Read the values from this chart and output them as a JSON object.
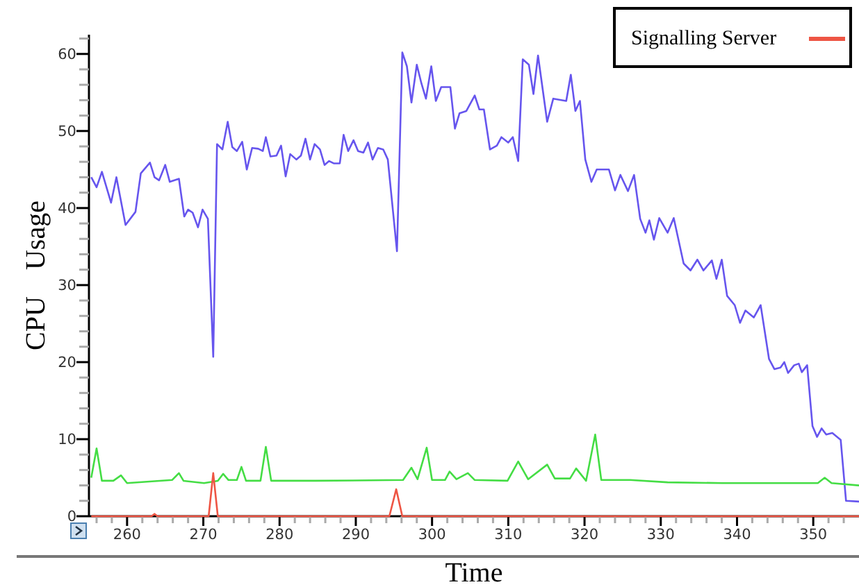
{
  "chart_data": {
    "type": "line",
    "xlabel": "Time",
    "ylabel": "CPU Usage",
    "xlim": [
      255,
      356
    ],
    "ylim": [
      0,
      62.5
    ],
    "xticks": [
      {
        "value": 256,
        "label": null
      },
      {
        "value": 258,
        "label": null
      },
      260,
      {
        "value": 262,
        "label": null
      },
      {
        "value": 264,
        "label": null
      },
      {
        "value": 266,
        "label": null
      },
      {
        "value": 268,
        "label": null
      },
      270,
      {
        "value": 272,
        "label": null
      },
      {
        "value": 274,
        "label": null
      },
      {
        "value": 276,
        "label": null
      },
      {
        "value": 278,
        "label": null
      },
      280,
      {
        "value": 282,
        "label": null
      },
      {
        "value": 284,
        "label": null
      },
      {
        "value": 286,
        "label": null
      },
      {
        "value": 288,
        "label": null
      },
      290,
      {
        "value": 292,
        "label": null
      },
      {
        "value": 294,
        "label": null
      },
      {
        "value": 296,
        "label": null
      },
      {
        "value": 298,
        "label": null
      },
      300,
      {
        "value": 302,
        "label": null
      },
      {
        "value": 304,
        "label": null
      },
      {
        "value": 306,
        "label": null
      },
      {
        "value": 308,
        "label": null
      },
      310,
      {
        "value": 312,
        "label": null
      },
      {
        "value": 314,
        "label": null
      },
      {
        "value": 316,
        "label": null
      },
      {
        "value": 318,
        "label": null
      },
      320,
      {
        "value": 322,
        "label": null
      },
      {
        "value": 324,
        "label": null
      },
      {
        "value": 326,
        "label": null
      },
      {
        "value": 328,
        "label": null
      },
      330,
      {
        "value": 332,
        "label": null
      },
      {
        "value": 334,
        "label": null
      },
      {
        "value": 336,
        "label": null
      },
      {
        "value": 338,
        "label": null
      },
      340,
      {
        "value": 342,
        "label": null
      },
      {
        "value": 344,
        "label": null
      },
      {
        "value": 346,
        "label": null
      },
      {
        "value": 348,
        "label": null
      },
      350,
      {
        "value": 352,
        "label": null
      },
      {
        "value": 354,
        "label": null
      }
    ],
    "yticks": [
      0,
      {
        "value": 2,
        "label": null
      },
      {
        "value": 4,
        "label": null
      },
      {
        "value": 6,
        "label": null
      },
      {
        "value": 8,
        "label": null
      },
      10,
      {
        "value": 12,
        "label": null
      },
      {
        "value": 14,
        "label": null
      },
      {
        "value": 16,
        "label": null
      },
      {
        "value": 18,
        "label": null
      },
      20,
      {
        "value": 22,
        "label": null
      },
      {
        "value": 24,
        "label": null
      },
      {
        "value": 26,
        "label": null
      },
      {
        "value": 28,
        "label": null
      },
      30,
      {
        "value": 32,
        "label": null
      },
      {
        "value": 34,
        "label": null
      },
      {
        "value": 36,
        "label": null
      },
      {
        "value": 38,
        "label": null
      },
      40,
      {
        "value": 42,
        "label": null
      },
      {
        "value": 44,
        "label": null
      },
      {
        "value": 46,
        "label": null
      },
      {
        "value": 48,
        "label": null
      },
      50,
      {
        "value": 52,
        "label": null
      },
      {
        "value": 54,
        "label": null
      },
      {
        "value": 56,
        "label": null
      },
      {
        "value": 58,
        "label": null
      },
      60,
      {
        "value": 62,
        "label": null
      }
    ],
    "grid": false,
    "legend": "top right",
    "marker": "none",
    "line_style": "solid",
    "series": [
      {
        "color": "#6655ee",
        "x": [
          255.3,
          256,
          256.7,
          257.9,
          258.6,
          259.8,
          261.1,
          261.8,
          263,
          263.6,
          264.2,
          265,
          265.6,
          266.8,
          267.5,
          268,
          268.6,
          269.3,
          269.9,
          270.6,
          271.3,
          271.8,
          272.5,
          273.2,
          273.8,
          274.4,
          275.1,
          275.7,
          276.4,
          277.2,
          277.8,
          278.2,
          278.8,
          279.6,
          280.2,
          280.8,
          281.4,
          282.2,
          282.8,
          283.4,
          284,
          284.6,
          285.3,
          285.9,
          286.5,
          287.1,
          287.9,
          288.4,
          289,
          289.7,
          290.3,
          291,
          291.6,
          292.2,
          292.9,
          293.6,
          294.2,
          295.4,
          296.1,
          296.7,
          297.3,
          298,
          298.6,
          299.2,
          299.9,
          300.5,
          301.2,
          302.4,
          303,
          303.6,
          304.5,
          305.6,
          306.2,
          306.8,
          307.6,
          308.5,
          309.1,
          310,
          310.6,
          311.3,
          311.9,
          312.7,
          313.3,
          313.9,
          315.1,
          315.9,
          317.6,
          318.2,
          318.8,
          319.4,
          320.1,
          320.9,
          321.6,
          323.2,
          324,
          324.7,
          325.7,
          326.5,
          327.3,
          328,
          328.5,
          329.1,
          329.8,
          330.9,
          331.7,
          333,
          333.9,
          334.8,
          335.6,
          336.7,
          337.3,
          338,
          338.7,
          339.7,
          340.4,
          341.1,
          342.2,
          343.1,
          344.2,
          344.9,
          345.7,
          346.2,
          346.7,
          347.5,
          348.1,
          348.5,
          349.2,
          349.9,
          350.5,
          351.1,
          351.7,
          352.5,
          353.6,
          354.3,
          356
        ],
        "values": [
          44,
          42.7,
          44.7,
          40.7,
          44,
          37.8,
          39.5,
          44.5,
          45.9,
          44,
          43.6,
          45.6,
          43.4,
          43.8,
          38.9,
          39.8,
          39.4,
          37.5,
          39.8,
          38.6,
          20.7,
          48.3,
          47.6,
          51.2,
          47.9,
          47.4,
          48.6,
          45,
          47.8,
          47.7,
          47.4,
          49.2,
          46.7,
          46.8,
          48.1,
          44.1,
          47,
          46.3,
          46.8,
          49,
          46.3,
          48.3,
          47.6,
          45.6,
          46.1,
          45.8,
          45.8,
          49.5,
          47.4,
          48.8,
          47.4,
          47.2,
          48.5,
          46.3,
          47.8,
          47.6,
          46.3,
          34.4,
          60.2,
          58.4,
          53.7,
          58.6,
          56.2,
          54.2,
          58.4,
          53.9,
          55.7,
          55.7,
          50.3,
          52.3,
          52.6,
          54.6,
          52.8,
          52.8,
          47.6,
          48.1,
          49.2,
          48.5,
          49.2,
          46.1,
          59.3,
          58.6,
          54.8,
          59.8,
          51.2,
          54.2,
          53.9,
          57.3,
          52.6,
          53.9,
          46.3,
          43.4,
          45,
          45,
          42.3,
          44.3,
          42.2,
          44.3,
          38.6,
          36.8,
          38.4,
          35.9,
          38.7,
          36.8,
          38.7,
          32.8,
          31.9,
          33.3,
          31.9,
          33.2,
          30.8,
          33.3,
          28.6,
          27.4,
          25.1,
          26.7,
          25.8,
          27.4,
          20.4,
          19.1,
          19.3,
          20,
          18.6,
          19.6,
          19.8,
          18.7,
          19.6,
          11.7,
          10.3,
          11.4,
          10.6,
          10.8,
          9.9,
          2,
          1.9
        ]
      },
      {
        "color": "#44dd44",
        "x": [
          255.3,
          256,
          256.7,
          258.2,
          259.2,
          260,
          265.9,
          266.8,
          267.4,
          270.1,
          271.9,
          272.6,
          273.3,
          274.4,
          275,
          275.6,
          277.5,
          278.2,
          278.9,
          284.7,
          296.2,
          297.3,
          298.1,
          299.3,
          300,
          301.7,
          302.3,
          303.2,
          304.7,
          305.6,
          309.9,
          311.3,
          312.6,
          315.1,
          316.1,
          318.1,
          318.9,
          320.2,
          321.4,
          322.2,
          326,
          330.9,
          338.1,
          346,
          350.6,
          351.5,
          352.4,
          356
        ],
        "values": [
          5,
          8.8,
          4.6,
          4.6,
          5.3,
          4.3,
          4.7,
          5.6,
          4.6,
          4.3,
          4.6,
          5.5,
          4.7,
          4.7,
          6.4,
          4.6,
          4.6,
          9,
          4.6,
          4.6,
          4.7,
          6.3,
          4.8,
          8.9,
          4.7,
          4.7,
          5.8,
          4.8,
          5.6,
          4.7,
          4.6,
          7.1,
          4.8,
          6.7,
          4.9,
          4.9,
          6.2,
          4.6,
          10.6,
          4.7,
          4.7,
          4.4,
          4.3,
          4.3,
          4.3,
          5,
          4.3,
          4
        ]
      },
      {
        "name": "Signalling Server",
        "color": "#ee5544",
        "x": [
          255.3,
          263.2,
          263.6,
          264,
          270.7,
          271.3,
          271.9,
          294.4,
          295.3,
          296.1,
          356
        ],
        "values": [
          0,
          0,
          0.3,
          0,
          0,
          5.6,
          0,
          0,
          3.5,
          0,
          0
        ]
      }
    ]
  }
}
